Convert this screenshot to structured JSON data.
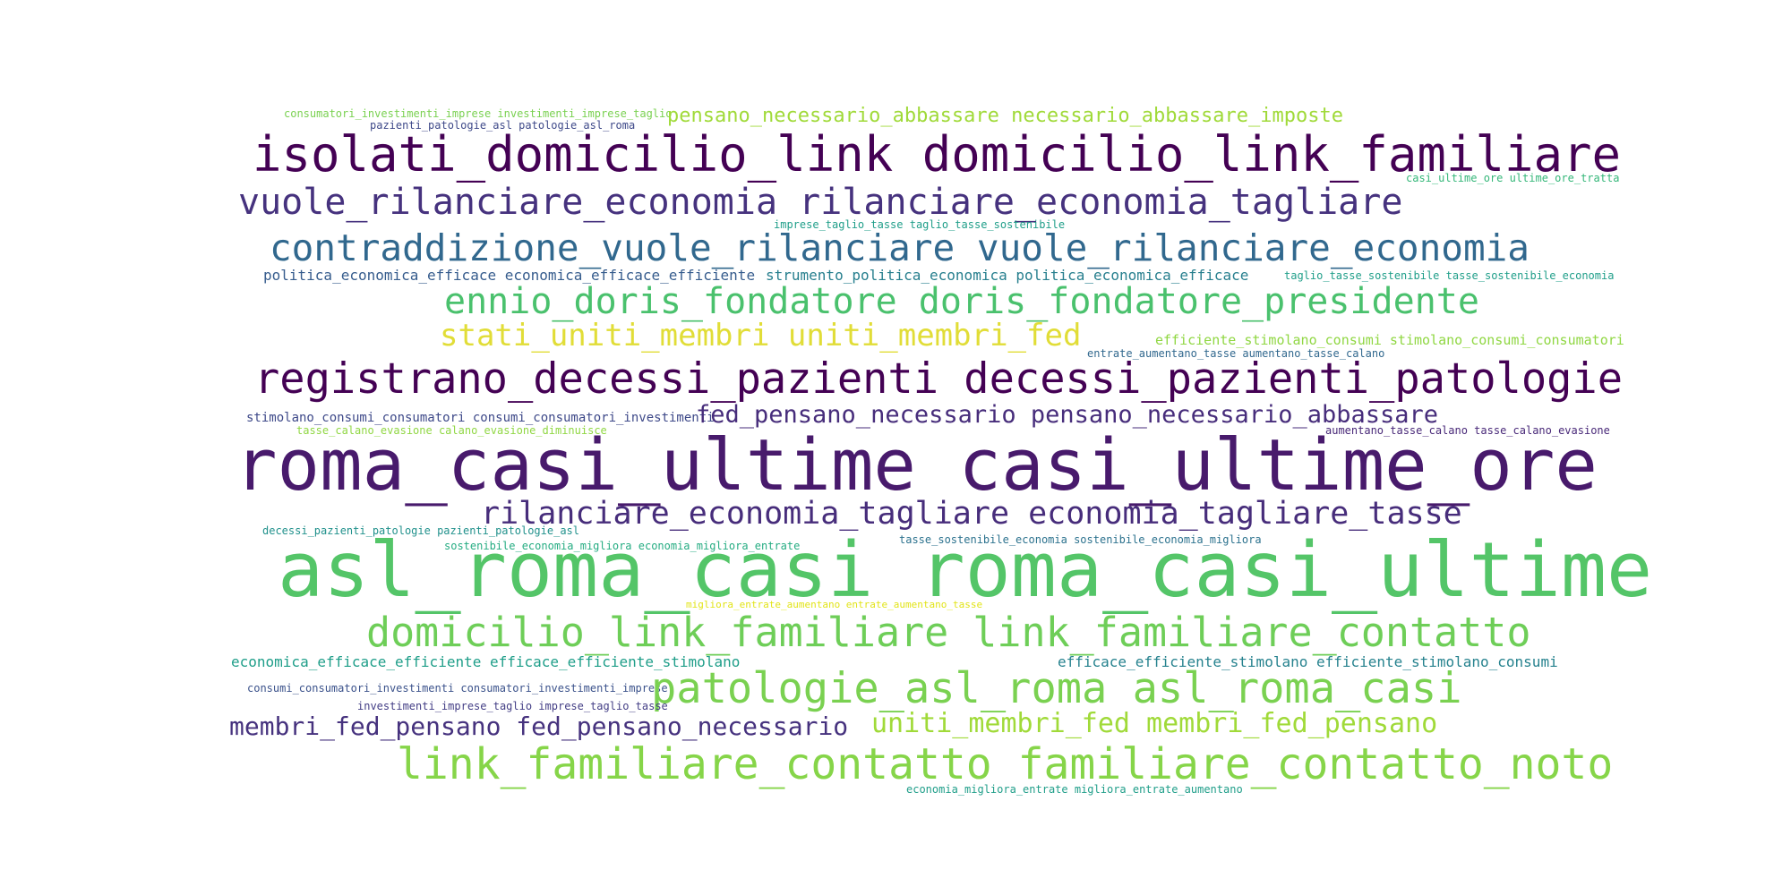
{
  "word_cloud": {
    "words": [
      {
        "text": "consumatori_investimenti_imprese investimenti_imprese_taglio",
        "color": "#7ad151"
      },
      {
        "text": "pensano_necessario_abbassare necessario_abbassare_imposte",
        "color": "#a0da39"
      },
      {
        "text": "pazienti_patologie_asl patologie_asl_roma",
        "color": "#3e4989"
      },
      {
        "text": "isolati_domicilio_link domicilio_link_familiare",
        "color": "#440154"
      },
      {
        "text": "casi_ultime_ore ultime_ore_tratta",
        "color": "#35b779"
      },
      {
        "text": "vuole_rilanciare_economia rilanciare_economia_tagliare",
        "color": "#46327e"
      },
      {
        "text": "imprese_taglio_tasse taglio_tasse_sostenibile",
        "color": "#1f9e89"
      },
      {
        "text": "contraddizione_vuole_rilanciare vuole_rilanciare_economia",
        "color": "#31688e"
      },
      {
        "text": "politica_economica_efficace economica_efficace_efficiente",
        "color": "#365c8d"
      },
      {
        "text": "strumento_politica_economica politica_economica_efficace",
        "color": "#277f8e"
      },
      {
        "text": "taglio_tasse_sostenibile tasse_sostenibile_economia",
        "color": "#1f9e89"
      },
      {
        "text": "ennio_doris_fondatore doris_fondatore_presidente",
        "color": "#4ac16d"
      },
      {
        "text": "stati_uniti_membri uniti_membri_fed",
        "color": "#e1dd37"
      },
      {
        "text": "efficiente_stimolano_consumi stimolano_consumi_consumatori",
        "color": "#90d743"
      },
      {
        "text": "entrate_aumentano_tasse aumentano_tasse_calano",
        "color": "#31688e"
      },
      {
        "text": "registrano_decessi_pazienti decessi_pazienti_patologie",
        "color": "#440154"
      },
      {
        "text": "stimolano_consumi_consumatori consumi_consumatori_investimenti",
        "color": "#3e4989"
      },
      {
        "text": "fed_pensano_necessario pensano_necessario_abbassare",
        "color": "#472d7b"
      },
      {
        "text": "tasse_calano_evasione calano_evasione_diminuisce",
        "color": "#90d743"
      },
      {
        "text": "aumentano_tasse_calano tasse_calano_evasione",
        "color": "#482878"
      },
      {
        "text": "roma_casi_ultime casi_ultime_ore",
        "color": "#481a6c"
      },
      {
        "text": "rilanciare_economia_tagliare economia_tagliare_tasse",
        "color": "#472d7b"
      },
      {
        "text": "decessi_pazienti_patologie pazienti_patologie_asl",
        "color": "#21918c"
      },
      {
        "text": "sostenibile_economia_migliora economia_migliora_entrate",
        "color": "#25ac82"
      },
      {
        "text": "tasse_sostenibile_economia sostenibile_economia_migliora",
        "color": "#2c728e"
      },
      {
        "text": "asl_roma_casi roma_casi_ultime",
        "color": "#54c568"
      },
      {
        "text": "migliora_entrate_aumentano entrate_aumentano_tasse",
        "color": "#e2e418"
      },
      {
        "text": "domicilio_link_familiare link_familiare_contatto",
        "color": "#6ece58"
      },
      {
        "text": "economica_efficace_efficiente efficace_efficiente_stimolano",
        "color": "#1f9e89"
      },
      {
        "text": "efficace_efficiente_stimolano efficiente_stimolano_consumi",
        "color": "#26828e"
      },
      {
        "text": "consumi_consumatori_investimenti consumatori_investimenti_imprese",
        "color": "#3b528b"
      },
      {
        "text": "patologie_asl_roma asl_roma_casi",
        "color": "#7ad151"
      },
      {
        "text": "investimenti_imprese_taglio imprese_taglio_tasse",
        "color": "#433e85"
      },
      {
        "text": "membri_fed_pensano fed_pensano_necessario",
        "color": "#46327e"
      },
      {
        "text": "uniti_membri_fed membri_fed_pensano",
        "color": "#a0da39"
      },
      {
        "text": "link_familiare_contatto familiare_contatto_noto",
        "color": "#86d549"
      },
      {
        "text": "economia_migliora_entrate migliora_entrate_aumentano",
        "color": "#1f9e89"
      }
    ]
  }
}
